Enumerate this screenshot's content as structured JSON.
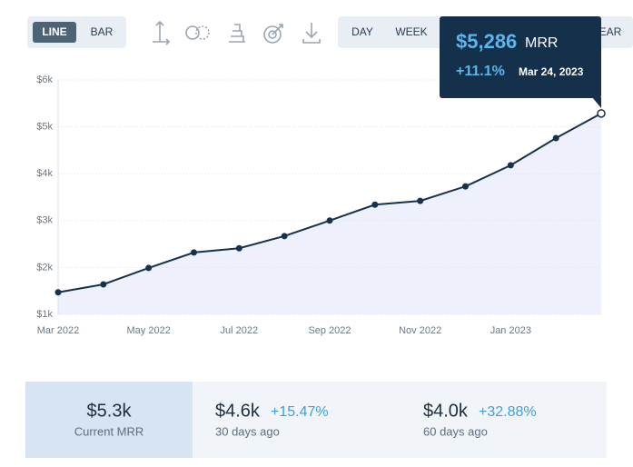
{
  "toolbar": {
    "chart_types": [
      "LINE",
      "BAR"
    ],
    "ranges": [
      "DAY",
      "WEEK",
      "YEAR"
    ]
  },
  "chart_data": {
    "type": "line",
    "categories": [
      "Mar 2022",
      null,
      "May 2022",
      null,
      "Jul 2022",
      null,
      "Sep 2022",
      null,
      "Nov 2022",
      null,
      "Jan 2023",
      null,
      null
    ],
    "values": [
      1.47,
      1.64,
      1.99,
      2.32,
      2.41,
      2.67,
      3.0,
      3.34,
      3.42,
      3.73,
      4.18,
      4.76,
      5.286
    ],
    "color": "#17324d",
    "ylim": [
      1,
      6
    ],
    "yticks": [
      {
        "value": 1,
        "label": "$1k"
      },
      {
        "value": 2,
        "label": "$2k"
      },
      {
        "value": 3,
        "label": "$3k"
      },
      {
        "value": 4,
        "label": "$4k"
      },
      {
        "value": 5,
        "label": "$5k"
      },
      {
        "value": 6,
        "label": "$6k"
      }
    ],
    "grid": true
  },
  "tooltip": {
    "value": "$5,286",
    "unit": "MRR",
    "change": "+11.1%",
    "date": "Mar 24, 2023"
  },
  "stats": [
    {
      "value": "$5.3k",
      "label": "Current MRR"
    },
    {
      "value": "$4.6k",
      "change": "+15.47%",
      "label": "30 days ago"
    },
    {
      "value": "$4.0k",
      "change": "+32.88%",
      "label": "60 days ago"
    }
  ]
}
